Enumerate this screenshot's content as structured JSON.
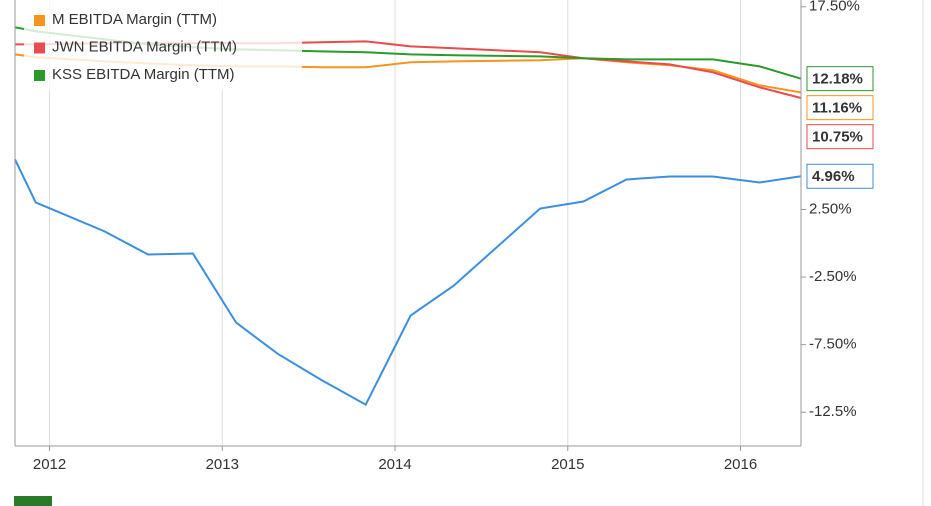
{
  "chart_data": {
    "type": "line",
    "x": [
      2011.8,
      2011.92,
      2012.32,
      2012.57,
      2012.83,
      2013.08,
      2013.32,
      2013.57,
      2013.83,
      2014.09,
      2014.34,
      2014.84,
      2015.09,
      2015.34,
      2015.59,
      2015.84,
      2016.11,
      2016.35
    ],
    "series": [
      {
        "color": "#3a8fde",
        "values": [
          6.2,
          3.02,
          0.87,
          -0.83,
          -0.76,
          -5.87,
          -8.17,
          -10.09,
          -11.94,
          -5.35,
          -3.13,
          2.57,
          3.09,
          4.72,
          4.94,
          4.94,
          4.5,
          4.96
        ],
        "value_labels": [
          null,
          null,
          null,
          null,
          null,
          null,
          null,
          null,
          null,
          null,
          null,
          null,
          null,
          null,
          null,
          null,
          null,
          "4.96%"
        ]
      },
      {
        "name": "M EBITDA Margin (TTM)",
        "color": "#f7941d",
        "values": [
          13.98,
          13.76,
          13.46,
          13.31,
          13.17,
          13.09,
          13.09,
          13.02,
          13.02,
          13.39,
          13.46,
          13.54,
          13.69,
          13.39,
          13.17,
          12.8,
          11.69,
          11.16
        ],
        "value_labels": [
          null,
          null,
          null,
          null,
          null,
          null,
          null,
          null,
          null,
          null,
          null,
          null,
          null,
          null,
          null,
          null,
          null,
          "11.16%"
        ]
      },
      {
        "name": "JWN EBITDA Margin (TTM)",
        "color": "#e84c4c",
        "values": [
          14.72,
          14.72,
          14.8,
          14.8,
          14.8,
          14.8,
          14.8,
          14.87,
          14.94,
          14.57,
          14.43,
          14.13,
          13.69,
          13.46,
          13.24,
          12.65,
          11.54,
          10.75
        ],
        "value_labels": [
          null,
          null,
          null,
          null,
          null,
          null,
          null,
          null,
          null,
          null,
          null,
          null,
          null,
          null,
          null,
          null,
          null,
          "10.75%"
        ]
      },
      {
        "name": "KSS EBITDA Margin (TTM)",
        "color": "#2a9a2a",
        "values": [
          15.98,
          15.69,
          15.09,
          14.72,
          14.5,
          14.35,
          14.28,
          14.2,
          14.13,
          13.98,
          13.91,
          13.83,
          13.69,
          13.61,
          13.61,
          13.61,
          13.09,
          12.18
        ],
        "value_labels": [
          null,
          null,
          null,
          null,
          null,
          null,
          null,
          null,
          null,
          null,
          null,
          null,
          null,
          null,
          null,
          null,
          null,
          "12.18%"
        ]
      }
    ],
    "xlim": [
      2011.8,
      2016.35
    ],
    "xticks": [
      2012,
      2013,
      2014,
      2015,
      2016
    ],
    "ylim": [
      -15,
      18
    ],
    "yticks": [
      {
        "value": 17.5,
        "label": "17.50%"
      },
      {
        "value": 2.5,
        "label": "2.50%"
      },
      {
        "value": -2.5,
        "label": "-2.50%"
      },
      {
        "value": -7.5,
        "label": "-7.50%"
      },
      {
        "value": -12.5,
        "label": "-12.5%"
      }
    ],
    "grid": true,
    "legend": "top-left"
  }
}
